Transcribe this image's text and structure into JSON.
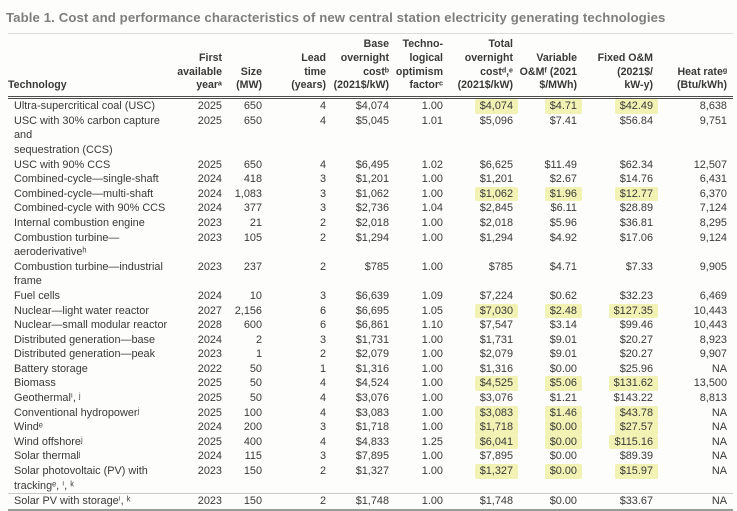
{
  "title": "Table 1. Cost and performance characteristics of new central station electricity generating technologies",
  "colors": {
    "highlight": "#f2f2b4",
    "title_gray": "#7e7e7e",
    "body_text": "#393939"
  },
  "columns": {
    "technology": "Technology",
    "year": "First\navailable\nyearᵃ",
    "size": "Size\n(MW)",
    "lead": "Lead\ntime\n(years)",
    "base": "Base\novernight\ncostᵇ\n(2021$/kW)",
    "optimism": "Techno-\nlogical\noptimism\nfactorᶜ",
    "total": "Total\novernight\ncostᵈ,ᵉ\n(2021$/kW)",
    "variable": "Variable\nO&Mᶠ (2021\n$/MWh)",
    "fixed": "Fixed O&M\n(2021$/\nkW-y)",
    "heat": "Heat rateᵍ\n(Btu/kWh)"
  },
  "rows": [
    {
      "t": "Ultra-supercritical coal (USC)",
      "yr": "2025",
      "sz": "650",
      "ld": "4",
      "bc": "$4,074",
      "tf": "1.00",
      "tc": "$4,074",
      "vo": "$4.71",
      "fo": "$42.49",
      "hr": "8,638",
      "highlighted": true
    },
    {
      "t": "USC with 30% carbon capture and\nsequestration (CCS)",
      "yr": "2025",
      "sz": "650",
      "ld": "4",
      "bc": "$5,045",
      "tf": "1.01",
      "tc": "$5,096",
      "vo": "$7.41",
      "fo": "$56.84",
      "hr": "9,751",
      "highlighted": false
    },
    {
      "t": "USC with 90% CCS",
      "yr": "2025",
      "sz": "650",
      "ld": "4",
      "bc": "$6,495",
      "tf": "1.02",
      "tc": "$6,625",
      "vo": "$11.49",
      "fo": "$62.34",
      "hr": "12,507",
      "highlighted": false
    },
    {
      "t": "Combined-cycle—single-shaft",
      "yr": "2024",
      "sz": "418",
      "ld": "3",
      "bc": "$1,201",
      "tf": "1.00",
      "tc": "$1,201",
      "vo": "$2.67",
      "fo": "$14.76",
      "hr": "6,431",
      "highlighted": false
    },
    {
      "t": "Combined-cycle—multi-shaft",
      "yr": "2024",
      "sz": "1,083",
      "ld": "3",
      "bc": "$1,062",
      "tf": "1.00",
      "tc": "$1,062",
      "vo": "$1.96",
      "fo": "$12.77",
      "hr": "6,370",
      "highlighted": true
    },
    {
      "t": "Combined-cycle with 90% CCS",
      "yr": "2024",
      "sz": "377",
      "ld": "3",
      "bc": "$2,736",
      "tf": "1.04",
      "tc": "$2,845",
      "vo": "$6.11",
      "fo": "$28.89",
      "hr": "7,124",
      "highlighted": false
    },
    {
      "t": "Internal combustion engine",
      "yr": "2023",
      "sz": "21",
      "ld": "2",
      "bc": "$2,018",
      "tf": "1.00",
      "tc": "$2,018",
      "vo": "$5.96",
      "fo": "$36.81",
      "hr": "8,295",
      "highlighted": false
    },
    {
      "t": "Combustion turbine—\naeroderivativeʰ",
      "yr": "2023",
      "sz": "105",
      "ld": "2",
      "bc": "$1,294",
      "tf": "1.00",
      "tc": "$1,294",
      "vo": "$4.92",
      "fo": "$17.06",
      "hr": "9,124",
      "highlighted": false
    },
    {
      "t": "Combustion turbine—industrial\nframe",
      "yr": "2023",
      "sz": "237",
      "ld": "2",
      "bc": "$785",
      "tf": "1.00",
      "tc": "$785",
      "vo": "$4.71",
      "fo": "$7.33",
      "hr": "9,905",
      "highlighted": false
    },
    {
      "t": "Fuel cells",
      "yr": "2024",
      "sz": "10",
      "ld": "3",
      "bc": "$6,639",
      "tf": "1.09",
      "tc": "$7,224",
      "vo": "$0.62",
      "fo": "$32.23",
      "hr": "6,469",
      "highlighted": false
    },
    {
      "t": "Nuclear—light water reactor",
      "yr": "2027",
      "sz": "2,156",
      "ld": "6",
      "bc": "$6,695",
      "tf": "1.05",
      "tc": "$7,030",
      "vo": "$2.48",
      "fo": "$127.35",
      "hr": "10,443",
      "highlighted": true
    },
    {
      "t": "Nuclear—small modular reactor",
      "yr": "2028",
      "sz": "600",
      "ld": "6",
      "bc": "$6,861",
      "tf": "1.10",
      "tc": "$7,547",
      "vo": "$3.14",
      "fo": "$99.46",
      "hr": "10,443",
      "highlighted": false
    },
    {
      "t": "Distributed generation—base",
      "yr": "2024",
      "sz": "2",
      "ld": "3",
      "bc": "$1,731",
      "tf": "1.00",
      "tc": "$1,731",
      "vo": "$9.01",
      "fo": "$20.27",
      "hr": "8,923",
      "highlighted": false
    },
    {
      "t": "Distributed generation—peak",
      "yr": "2023",
      "sz": "1",
      "ld": "2",
      "bc": "$2,079",
      "tf": "1.00",
      "tc": "$2,079",
      "vo": "$9.01",
      "fo": "$20.27",
      "hr": "9,907",
      "highlighted": false
    },
    {
      "t": "Battery storage",
      "yr": "2022",
      "sz": "50",
      "ld": "1",
      "bc": "$1,316",
      "tf": "1.00",
      "tc": "$1,316",
      "vo": "$0.00",
      "fo": "$25.96",
      "hr": "NA",
      "highlighted": false
    },
    {
      "t": "Biomass",
      "yr": "2025",
      "sz": "50",
      "ld": "4",
      "bc": "$4,524",
      "tf": "1.00",
      "tc": "$4,525",
      "vo": "$5.06",
      "fo": "$131.62",
      "hr": "13,500",
      "highlighted": true
    },
    {
      "t": "Geothermalⁱ, ʲ",
      "yr": "2025",
      "sz": "50",
      "ld": "4",
      "bc": "$3,076",
      "tf": "1.00",
      "tc": "$3,076",
      "vo": "$1.21",
      "fo": "$143.22",
      "hr": "8,813",
      "highlighted": false
    },
    {
      "t": "Conventional hydropowerʲ",
      "yr": "2025",
      "sz": "100",
      "ld": "4",
      "bc": "$3,083",
      "tf": "1.00",
      "tc": "$3,083",
      "vo": "$1.46",
      "fo": "$43.78",
      "hr": "NA",
      "highlighted": true
    },
    {
      "t": "Windᵉ",
      "yr": "2024",
      "sz": "200",
      "ld": "3",
      "bc": "$1,718",
      "tf": "1.00",
      "tc": "$1,718",
      "vo": "$0.00",
      "fo": "$27.57",
      "hr": "NA",
      "highlighted": true
    },
    {
      "t": "Wind offshoreʲ",
      "yr": "2025",
      "sz": "400",
      "ld": "4",
      "bc": "$4,833",
      "tf": "1.25",
      "tc": "$6,041",
      "vo": "$0.00",
      "fo": "$115.16",
      "hr": "NA",
      "highlighted": true
    },
    {
      "t": "Solar thermalʲ",
      "yr": "2024",
      "sz": "115",
      "ld": "3",
      "bc": "$7,895",
      "tf": "1.00",
      "tc": "$7,895",
      "vo": "$0.00",
      "fo": "$89.39",
      "hr": "NA",
      "highlighted": false
    },
    {
      "t": "Solar photovoltaic (PV) with\ntrackingᵉ, ⁱ, ᵏ",
      "yr": "2023",
      "sz": "150",
      "ld": "2",
      "bc": "$1,327",
      "tf": "1.00",
      "tc": "$1,327",
      "vo": "$0.00",
      "fo": "$15.97",
      "hr": "NA",
      "highlighted": true
    },
    {
      "t": "Solar PV with storageⁱ, ᵏ",
      "yr": "2023",
      "sz": "150",
      "ld": "2",
      "bc": "$1,748",
      "tf": "1.00",
      "tc": "$1,748",
      "vo": "$0.00",
      "fo": "$33.67",
      "hr": "NA",
      "highlighted": false
    }
  ]
}
